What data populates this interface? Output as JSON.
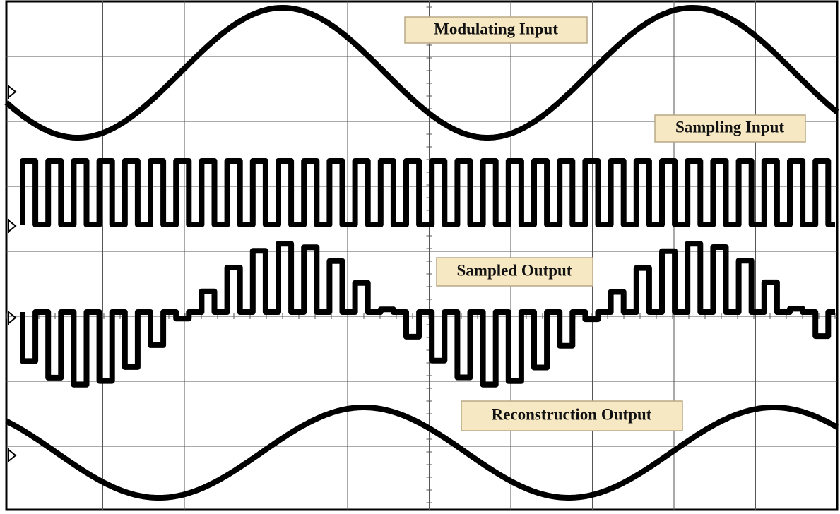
{
  "traces": [
    {
      "label": "Modulating Input"
    },
    {
      "label": "Sampling Input"
    },
    {
      "label": "Sampled Output"
    },
    {
      "label": "Reconstruction Output"
    }
  ]
}
